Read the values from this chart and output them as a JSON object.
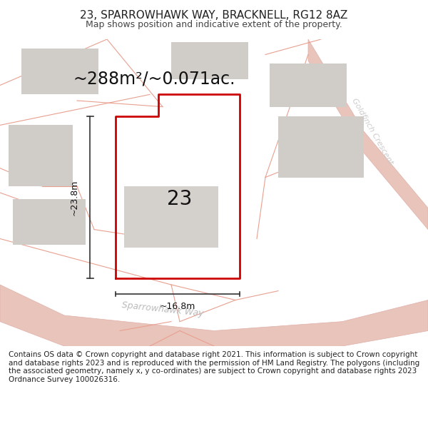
{
  "title": "23, SPARROWHAWK WAY, BRACKNELL, RG12 8AZ",
  "subtitle": "Map shows position and indicative extent of the property.",
  "area_text": "~288m²/~0.071ac.",
  "label_23": "23",
  "dim_height": "~23.8m",
  "dim_width": "~16.8m",
  "street_label": "Sparrowhawk Way",
  "road_label": "Goldfinch Crescent",
  "copyright_text": "Contains OS data © Crown copyright and database right 2021. This information is subject to Crown copyright and database rights 2023 and is reproduced with the permission of HM Land Registry. The polygons (including the associated geometry, namely x, y co-ordinates) are subject to Crown copyright and database rights 2023 Ordnance Survey 100026316.",
  "bg_color": "#ffffff",
  "map_bg": "#f5f0ee",
  "road_color": "#f0d0c8",
  "road_fill": "#e8c8c0",
  "plot_outline_color": "#cc0000",
  "dim_color": "#333333",
  "building_fill": "#d8d8d8",
  "text_color": "#333333",
  "street_text_color": "#aaaaaa",
  "title_fontsize": 11,
  "subtitle_fontsize": 9,
  "area_fontsize": 18,
  "label_fontsize": 22,
  "copyright_fontsize": 7.5
}
